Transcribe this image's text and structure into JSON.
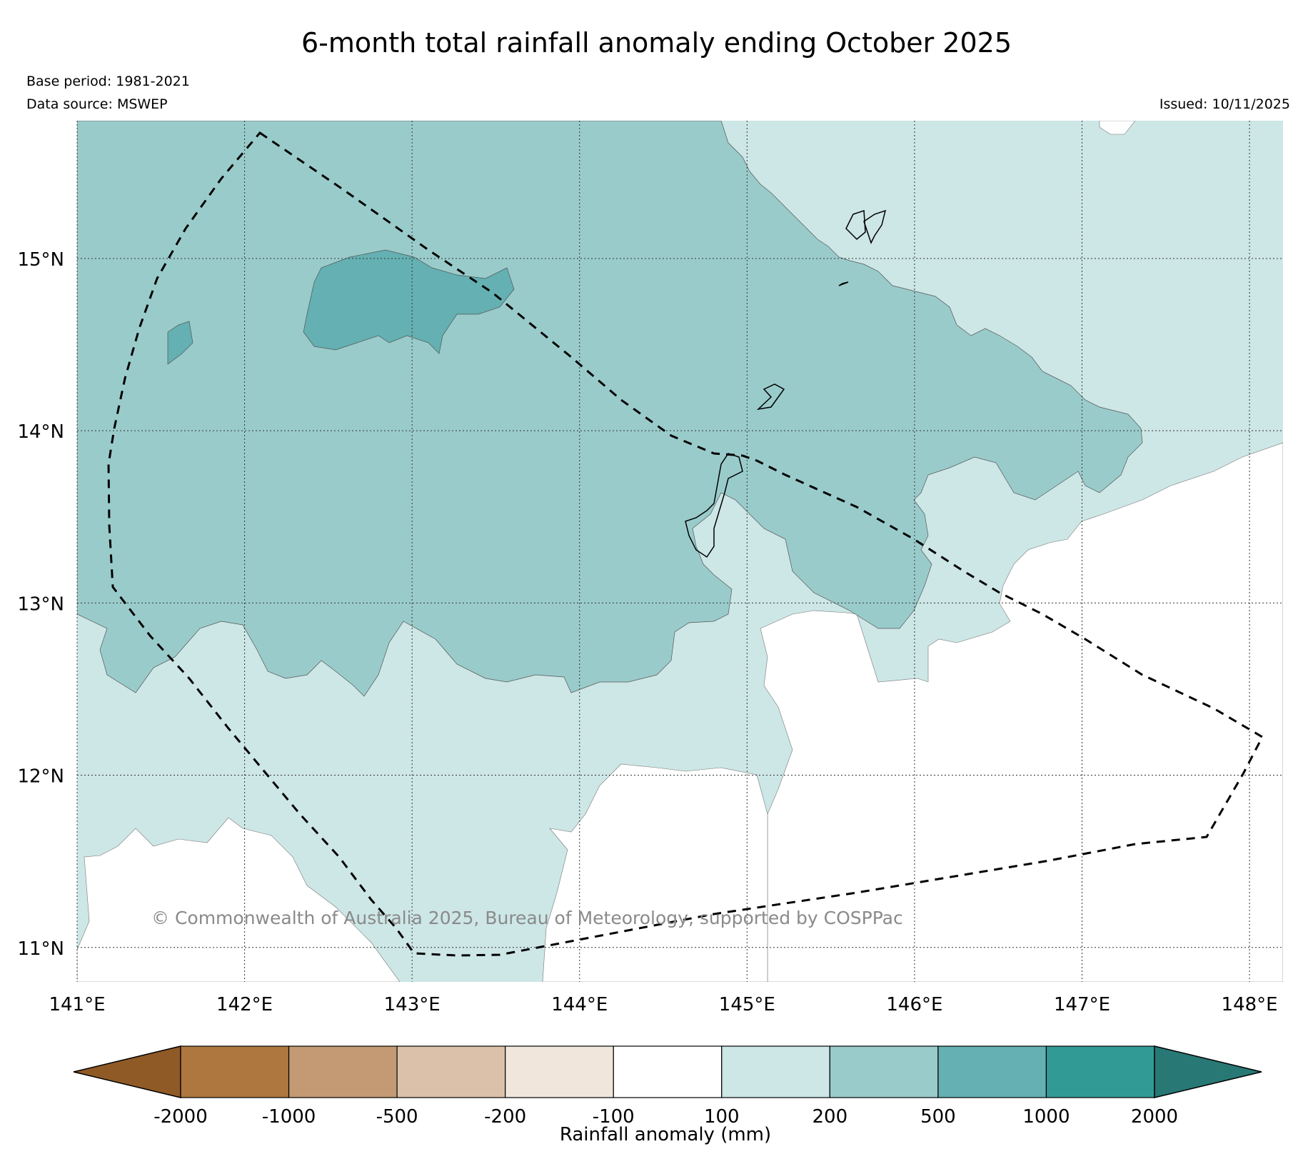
{
  "title": "6-month total rainfall anomaly ending October 2025",
  "base_period": "Base period: 1981-2021",
  "data_source": "Data source: MSWEP",
  "issued": "Issued: 10/11/2025",
  "copyright": "© Commonwealth of Australia 2025, Bureau of Meteorology, supported by COSPPac",
  "map": {
    "lon_range": [
      141.0,
      148.2
    ],
    "lat_range": [
      10.8,
      15.8
    ],
    "lon_ticks": [
      141,
      142,
      143,
      144,
      145,
      146,
      147,
      148
    ],
    "lon_tick_labels": [
      "141°E",
      "142°E",
      "143°E",
      "144°E",
      "145°E",
      "146°E",
      "147°E",
      "148°E"
    ],
    "lat_ticks": [
      11,
      12,
      13,
      14,
      15
    ],
    "lat_tick_labels": [
      "11°N",
      "12°N",
      "13°N",
      "14°N",
      "15°N"
    ],
    "grid": "dotted"
  },
  "colorbar": {
    "label": "Rainfall anomaly (mm)",
    "tick_labels": [
      "-2000",
      "-1000",
      "-500",
      "-200",
      "-100",
      "100",
      "200",
      "500",
      "1000",
      "2000"
    ],
    "colors": [
      "#905a27",
      "#ad773f",
      "#c39a73",
      "#dbc1a9",
      "#f0e6dc",
      "#ffffff",
      "#cde6e6",
      "#9acbcb",
      "#64b0b2",
      "#319a95",
      "#287876"
    ],
    "extend": "both"
  }
}
